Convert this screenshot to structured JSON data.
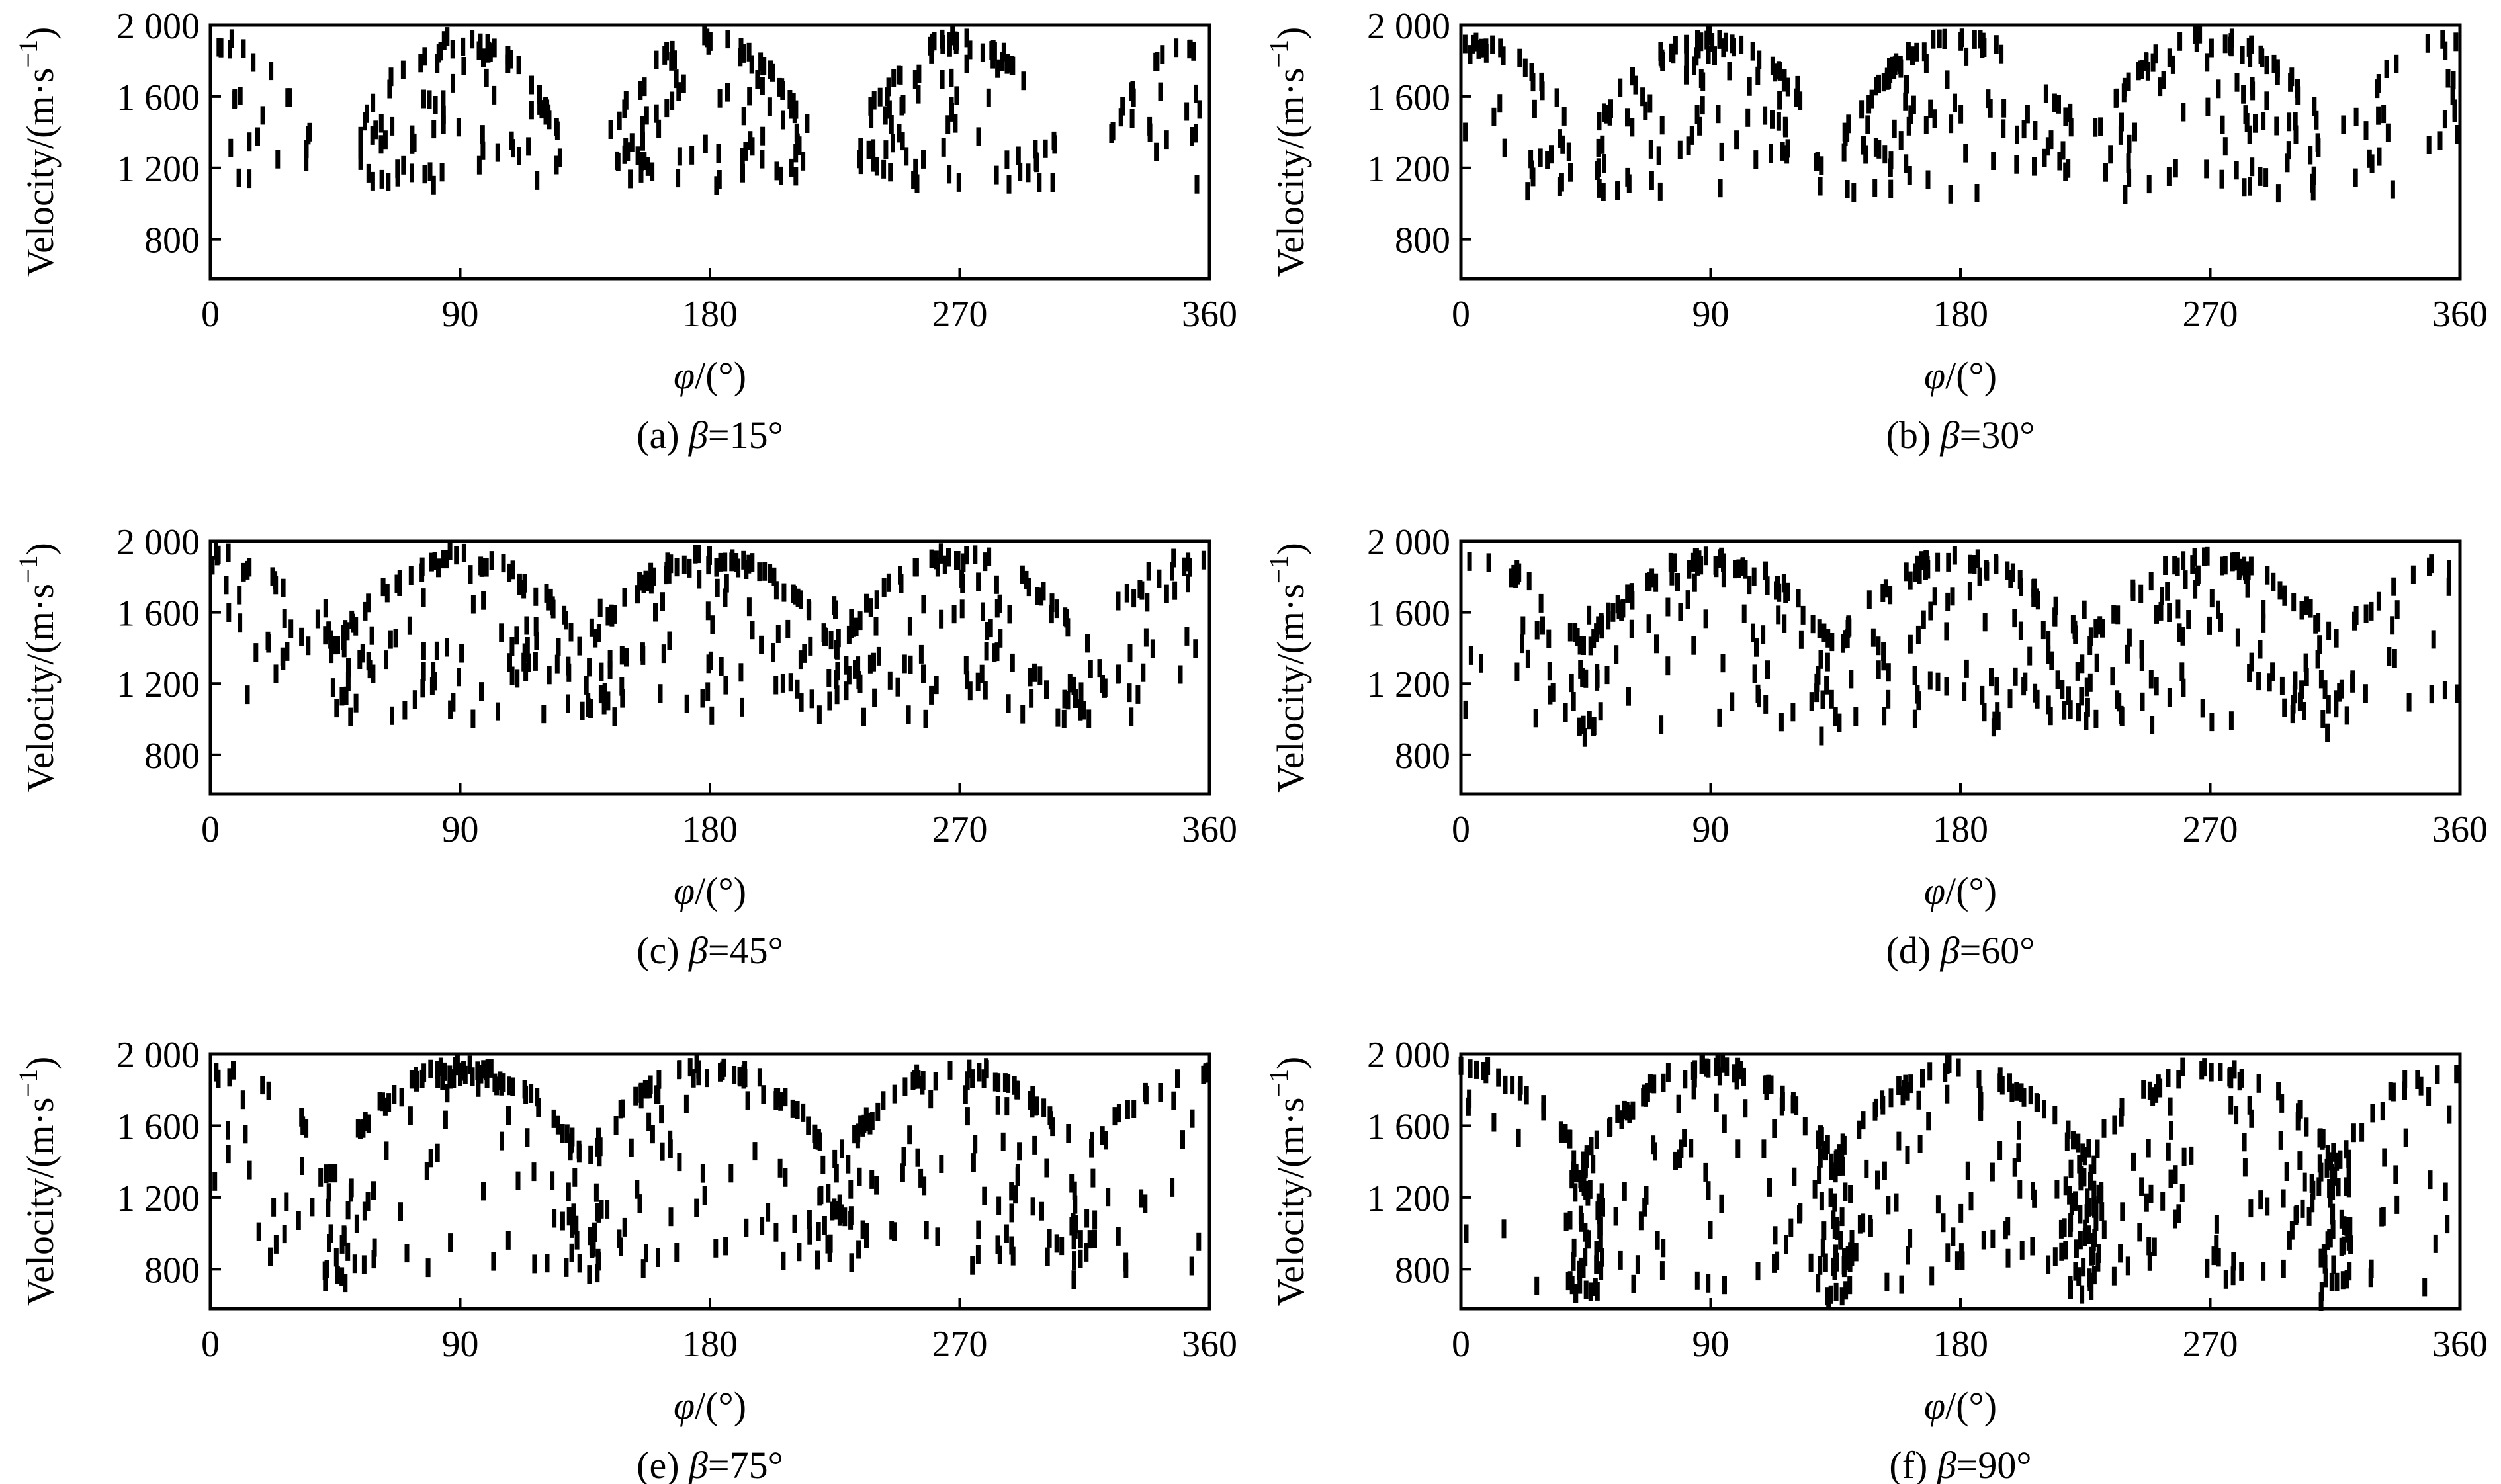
{
  "figure": {
    "y_axis_label": "Velocity/(m·s",
    "y_axis_exponent": "−1",
    "y_axis_label_close": ")",
    "x_axis_label_symbol": "φ",
    "x_axis_label_unit": "/(°)"
  },
  "chart_data": [
    {
      "type": "scatter",
      "caption_prefix": "(a) ",
      "caption_symbol": "β",
      "caption_value": "=15°",
      "xlim": [
        0,
        360
      ],
      "ylim": [
        580,
        2000
      ],
      "x_ticks": [
        "0",
        "90",
        "180",
        "270",
        "360"
      ],
      "y_ticks": [
        "2 000",
        "1 600",
        "1 200",
        "800"
      ],
      "x_tick_values": [
        0,
        90,
        180,
        270,
        360
      ],
      "y_tick_values": [
        2000,
        1600,
        1200,
        800
      ],
      "gaps": [
        [
          36,
          54
        ],
        [
          126,
          144
        ],
        [
          216,
          234
        ],
        [
          306,
          324
        ]
      ],
      "lobes": [
        {
          "center": 0,
          "n": 55,
          "min_v": 1100
        },
        {
          "center": 90,
          "n": 90,
          "min_v": 1100
        },
        {
          "center": 180,
          "n": 90,
          "min_v": 1100
        },
        {
          "center": 270,
          "n": 90,
          "min_v": 1100
        },
        {
          "center": 360,
          "n": 55,
          "min_v": 1100
        }
      ],
      "lobe_halfwidth": 36,
      "dip_points": 0,
      "max_v": 1950
    },
    {
      "type": "scatter",
      "caption_prefix": "(b) ",
      "caption_symbol": "β",
      "caption_value": "=30°",
      "xlim": [
        0,
        360
      ],
      "ylim": [
        580,
        2000
      ],
      "x_ticks": [
        "0",
        "90",
        "180",
        "270",
        "360"
      ],
      "y_ticks": [
        "2 000",
        "1 600",
        "1 200",
        "800"
      ],
      "x_tick_values": [
        0,
        90,
        180,
        270,
        360
      ],
      "y_tick_values": [
        2000,
        1600,
        1200,
        800
      ],
      "gaps": [
        [
          40,
          48
        ],
        [
          130,
          138
        ],
        [
          220,
          228
        ],
        [
          310,
          318
        ]
      ],
      "lobes": [
        {
          "center": 0,
          "n": 60,
          "min_v": 1050
        },
        {
          "center": 90,
          "n": 100,
          "min_v": 1050
        },
        {
          "center": 180,
          "n": 100,
          "min_v": 1050
        },
        {
          "center": 270,
          "n": 100,
          "min_v": 1050
        },
        {
          "center": 360,
          "n": 60,
          "min_v": 1050
        }
      ],
      "lobe_halfwidth": 42,
      "dip_points": 0,
      "max_v": 1960
    },
    {
      "type": "scatter",
      "caption_prefix": "(c) ",
      "caption_symbol": "β",
      "caption_value": "=45°",
      "xlim": [
        0,
        360
      ],
      "ylim": [
        580,
        2000
      ],
      "x_ticks": [
        "0",
        "90",
        "180",
        "270",
        "360"
      ],
      "y_ticks": [
        "2 000",
        "1 600",
        "1 200",
        "800"
      ],
      "x_tick_values": [
        0,
        90,
        180,
        270,
        360
      ],
      "y_tick_values": [
        2000,
        1600,
        1200,
        800
      ],
      "gaps": [],
      "lobes": [
        {
          "center": 0,
          "n": 65,
          "min_v": 1000
        },
        {
          "center": 90,
          "n": 110,
          "min_v": 1000
        },
        {
          "center": 180,
          "n": 110,
          "min_v": 1000
        },
        {
          "center": 270,
          "n": 110,
          "min_v": 1000
        },
        {
          "center": 360,
          "n": 65,
          "min_v": 1000
        }
      ],
      "lobe_halfwidth": 45,
      "dip_points": 4,
      "max_v": 1950
    },
    {
      "type": "scatter",
      "caption_prefix": "(d) ",
      "caption_symbol": "β",
      "caption_value": "=60°",
      "xlim": [
        0,
        360
      ],
      "ylim": [
        580,
        2000
      ],
      "x_ticks": [
        "0",
        "90",
        "180",
        "270",
        "360"
      ],
      "y_ticks": [
        "2 000",
        "1 600",
        "1 200",
        "800"
      ],
      "x_tick_values": [
        0,
        90,
        180,
        270,
        360
      ],
      "y_tick_values": [
        2000,
        1600,
        1200,
        800
      ],
      "gaps": [],
      "lobes": [
        {
          "center": 0,
          "n": 60,
          "min_v": 950
        },
        {
          "center": 90,
          "n": 105,
          "min_v": 950
        },
        {
          "center": 180,
          "n": 105,
          "min_v": 950
        },
        {
          "center": 270,
          "n": 105,
          "min_v": 950
        },
        {
          "center": 360,
          "n": 60,
          "min_v": 950
        }
      ],
      "lobe_halfwidth": 45,
      "dip_points": 8,
      "max_v": 1940
    },
    {
      "type": "scatter",
      "caption_prefix": "(e) ",
      "caption_symbol": "β",
      "caption_value": "=75°",
      "xlim": [
        0,
        360
      ],
      "ylim": [
        580,
        2000
      ],
      "x_ticks": [
        "0",
        "90",
        "180",
        "270",
        "360"
      ],
      "y_ticks": [
        "2 000",
        "1 600",
        "1 200",
        "800"
      ],
      "x_tick_values": [
        0,
        90,
        180,
        270,
        360
      ],
      "y_tick_values": [
        2000,
        1600,
        1200,
        800
      ],
      "gaps": [],
      "lobes": [
        {
          "center": 0,
          "n": 60,
          "min_v": 800
        },
        {
          "center": 90,
          "n": 105,
          "min_v": 800
        },
        {
          "center": 180,
          "n": 105,
          "min_v": 800
        },
        {
          "center": 270,
          "n": 105,
          "min_v": 800
        },
        {
          "center": 360,
          "n": 60,
          "min_v": 800
        }
      ],
      "lobe_halfwidth": 45,
      "dip_points": 14,
      "max_v": 1950
    },
    {
      "type": "scatter",
      "caption_prefix": "(f) ",
      "caption_symbol": "β",
      "caption_value": "=90°",
      "xlim": [
        0,
        360
      ],
      "ylim": [
        580,
        2000
      ],
      "x_ticks": [
        "0",
        "90",
        "180",
        "270",
        "360"
      ],
      "y_ticks": [
        "2 000",
        "1 600",
        "1 200",
        "800"
      ],
      "x_tick_values": [
        0,
        90,
        180,
        270,
        360
      ],
      "y_tick_values": [
        2000,
        1600,
        1200,
        800
      ],
      "gaps": [],
      "lobes": [
        {
          "center": 0,
          "n": 60,
          "min_v": 700
        },
        {
          "center": 90,
          "n": 110,
          "min_v": 700
        },
        {
          "center": 180,
          "n": 110,
          "min_v": 700
        },
        {
          "center": 270,
          "n": 110,
          "min_v": 700
        },
        {
          "center": 360,
          "n": 60,
          "min_v": 700
        }
      ],
      "lobe_halfwidth": 45,
      "dip_points": 40,
      "max_v": 1960
    }
  ]
}
